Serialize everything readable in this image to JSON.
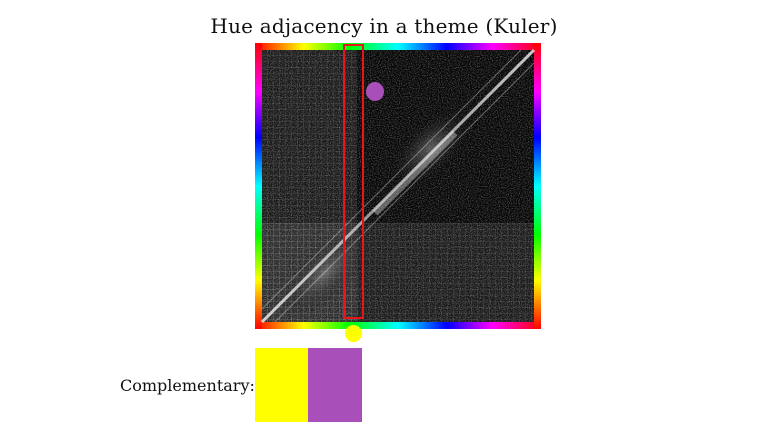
{
  "title": "Hue adjacency in a theme (Kuler)",
  "label": "Complementary:",
  "colors": {
    "highlight": "#e8151b",
    "swatch_1": "#ffff00",
    "swatch_2": "#a84fba",
    "marker_purple": "#a84fba",
    "marker_yellow": "#ffff00"
  },
  "icons": {
    "matrix": "hue-adjacency-heatmap",
    "column_highlight": "red-outline-rectangle"
  }
}
